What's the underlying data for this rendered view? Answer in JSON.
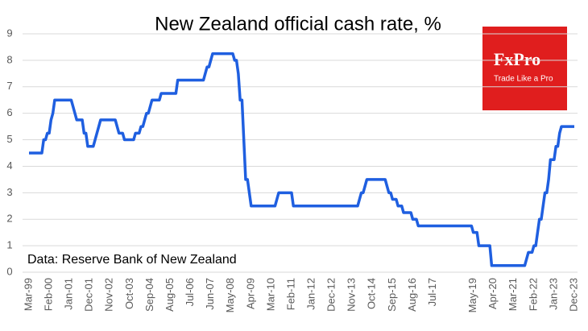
{
  "chart_data": {
    "type": "line",
    "title": "New Zealand official cash rate, %",
    "note": "Data: Reserve Bank of New Zealand",
    "color": "#1f5fe0",
    "grid": true,
    "ylim": [
      0,
      9
    ],
    "yticks": [
      0,
      1,
      2,
      3,
      4,
      5,
      6,
      7,
      8,
      9
    ],
    "categories": [
      "Mar-99",
      null,
      null,
      null,
      null,
      null,
      null,
      null,
      null,
      null,
      null,
      "Feb-00",
      null,
      null,
      null,
      null,
      null,
      null,
      null,
      null,
      null,
      null,
      "Jan-01",
      null,
      null,
      null,
      null,
      null,
      null,
      null,
      null,
      null,
      null,
      "Dec-01",
      null,
      null,
      null,
      null,
      null,
      null,
      null,
      null,
      null,
      null,
      "Nov-02",
      null,
      null,
      null,
      null,
      null,
      null,
      null,
      null,
      null,
      null,
      "Oct-03",
      null,
      null,
      null,
      null,
      null,
      null,
      null,
      null,
      null,
      null,
      "Sep-04",
      null,
      null,
      null,
      null,
      null,
      null,
      null,
      null,
      null,
      null,
      "Aug-05",
      null,
      null,
      null,
      null,
      null,
      null,
      null,
      null,
      null,
      null,
      "Jul-06",
      null,
      null,
      null,
      null,
      null,
      null,
      null,
      null,
      null,
      null,
      "Jun-07",
      null,
      null,
      null,
      null,
      null,
      null,
      null,
      null,
      null,
      null,
      "May-08",
      null,
      null,
      null,
      null,
      null,
      null,
      null,
      null,
      null,
      null,
      "Apr-09",
      null,
      null,
      null,
      null,
      null,
      null,
      null,
      null,
      null,
      null,
      "Mar-10",
      null,
      null,
      null,
      null,
      null,
      null,
      null,
      null,
      null,
      null,
      "Feb-11",
      null,
      null,
      null,
      null,
      null,
      null,
      null,
      null,
      null,
      null,
      "Jan-12",
      null,
      null,
      null,
      null,
      null,
      null,
      null,
      null,
      null,
      null,
      "Dec-12",
      null,
      null,
      null,
      null,
      null,
      null,
      null,
      null,
      null,
      null,
      "Nov-13",
      null,
      null,
      null,
      null,
      null,
      null,
      null,
      null,
      null,
      null,
      "Oct-14",
      null,
      null,
      null,
      null,
      null,
      null,
      null,
      null,
      null,
      null,
      "Sep-15",
      null,
      null,
      null,
      null,
      null,
      null,
      null,
      null,
      null,
      null,
      "Aug-16",
      null,
      null,
      null,
      null,
      null,
      null,
      null,
      null,
      null,
      null,
      "Jul-17",
      null,
      null,
      null,
      null,
      null,
      null,
      null,
      null,
      null,
      null,
      null,
      null,
      null,
      null,
      null,
      null,
      null,
      null,
      null,
      null,
      null,
      "May-19",
      null,
      null,
      null,
      null,
      null,
      null,
      null,
      null,
      null,
      null,
      "Apr-20",
      null,
      null,
      null,
      null,
      null,
      null,
      null,
      null,
      null,
      null,
      "Mar-21",
      null,
      null,
      null,
      null,
      null,
      null,
      null,
      null,
      null,
      null,
      "Feb-22",
      null,
      null,
      null,
      null,
      null,
      null,
      null,
      null,
      null,
      null,
      "Jan-23",
      null,
      null,
      null,
      null,
      null,
      null,
      null,
      null,
      null,
      null,
      "Dec-23"
    ],
    "values": [
      4.5,
      4.5,
      4.5,
      4.5,
      4.5,
      4.5,
      4.5,
      4.5,
      5.0,
      5.0,
      5.25,
      5.25,
      5.75,
      6.0,
      6.5,
      6.5,
      6.5,
      6.5,
      6.5,
      6.5,
      6.5,
      6.5,
      6.5,
      6.5,
      6.25,
      6.0,
      5.75,
      5.75,
      5.75,
      5.75,
      5.25,
      5.25,
      4.75,
      4.75,
      4.75,
      4.75,
      5.0,
      5.25,
      5.5,
      5.75,
      5.75,
      5.75,
      5.75,
      5.75,
      5.75,
      5.75,
      5.75,
      5.75,
      5.5,
      5.25,
      5.25,
      5.25,
      5.0,
      5.0,
      5.0,
      5.0,
      5.0,
      5.0,
      5.25,
      5.25,
      5.25,
      5.5,
      5.5,
      5.75,
      6.0,
      6.0,
      6.25,
      6.5,
      6.5,
      6.5,
      6.5,
      6.5,
      6.75,
      6.75,
      6.75,
      6.75,
      6.75,
      6.75,
      6.75,
      6.75,
      6.75,
      7.25,
      7.25,
      7.25,
      7.25,
      7.25,
      7.25,
      7.25,
      7.25,
      7.25,
      7.25,
      7.25,
      7.25,
      7.25,
      7.25,
      7.25,
      7.5,
      7.75,
      7.75,
      8.0,
      8.25,
      8.25,
      8.25,
      8.25,
      8.25,
      8.25,
      8.25,
      8.25,
      8.25,
      8.25,
      8.25,
      8.25,
      8.0,
      8.0,
      7.5,
      6.5,
      6.5,
      5.0,
      3.5,
      3.5,
      3.0,
      2.5,
      2.5,
      2.5,
      2.5,
      2.5,
      2.5,
      2.5,
      2.5,
      2.5,
      2.5,
      2.5,
      2.5,
      2.5,
      2.5,
      2.75,
      3.0,
      3.0,
      3.0,
      3.0,
      3.0,
      3.0,
      3.0,
      3.0,
      2.5,
      2.5,
      2.5,
      2.5,
      2.5,
      2.5,
      2.5,
      2.5,
      2.5,
      2.5,
      2.5,
      2.5,
      2.5,
      2.5,
      2.5,
      2.5,
      2.5,
      2.5,
      2.5,
      2.5,
      2.5,
      2.5,
      2.5,
      2.5,
      2.5,
      2.5,
      2.5,
      2.5,
      2.5,
      2.5,
      2.5,
      2.5,
      2.5,
      2.5,
      2.5,
      2.5,
      2.75,
      3.0,
      3.0,
      3.25,
      3.5,
      3.5,
      3.5,
      3.5,
      3.5,
      3.5,
      3.5,
      3.5,
      3.5,
      3.5,
      3.5,
      3.25,
      3.0,
      3.0,
      2.75,
      2.75,
      2.75,
      2.5,
      2.5,
      2.5,
      2.25,
      2.25,
      2.25,
      2.25,
      2.25,
      2.0,
      2.0,
      2.0,
      1.75,
      1.75,
      1.75,
      1.75,
      1.75,
      1.75,
      1.75,
      1.75,
      1.75,
      1.75,
      1.75,
      1.75,
      1.75,
      1.75,
      1.75,
      1.75,
      1.75,
      1.75,
      1.75,
      1.75,
      1.75,
      1.75,
      1.75,
      1.75,
      1.75,
      1.75,
      1.75,
      1.75,
      1.75,
      1.75,
      1.5,
      1.5,
      1.5,
      1.0,
      1.0,
      1.0,
      1.0,
      1.0,
      1.0,
      1.0,
      0.25,
      0.25,
      0.25,
      0.25,
      0.25,
      0.25,
      0.25,
      0.25,
      0.25,
      0.25,
      0.25,
      0.25,
      0.25,
      0.25,
      0.25,
      0.25,
      0.25,
      0.25,
      0.25,
      0.5,
      0.75,
      0.75,
      0.75,
      1.0,
      1.0,
      1.5,
      2.0,
      2.0,
      2.5,
      3.0,
      3.0,
      3.5,
      4.25,
      4.25,
      4.25,
      4.75,
      4.75,
      5.25,
      5.5,
      5.5,
      5.5,
      5.5,
      5.5,
      5.5,
      5.5,
      5.5
    ]
  },
  "logo": {
    "brand": "FxPro",
    "tagline": "Trade Like a Pro"
  }
}
